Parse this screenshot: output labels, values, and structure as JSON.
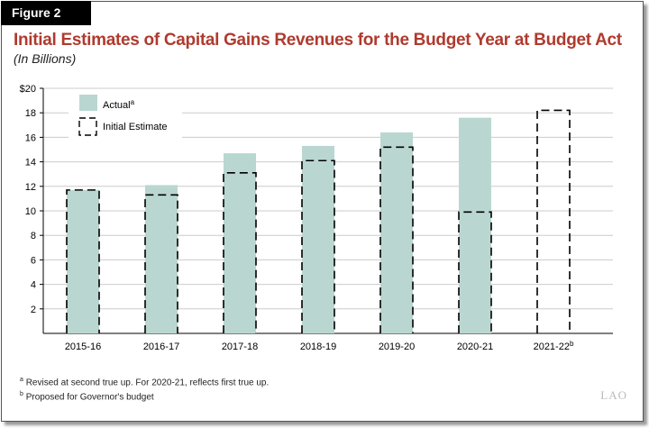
{
  "figure_label": "Figure 2",
  "logo_text": "LAO",
  "footnotes": [
    {
      "mark": "a",
      "text": "Revised at second true up. For 2020-21, reflects first true up."
    },
    {
      "mark": "b",
      "text": "Proposed for Governor's budget"
    }
  ],
  "chart_data": {
    "type": "bar",
    "title": "Initial Estimates of Capital Gains Revenues for the Budget Year at Budget Act",
    "subtitle": "(In Billions)",
    "categories": [
      "2015-16",
      "2016-17",
      "2017-18",
      "2018-19",
      "2019-20",
      "2020-21",
      "2021-22"
    ],
    "category_superscripts": [
      "",
      "",
      "",
      "",
      "",
      "",
      "b"
    ],
    "series": [
      {
        "name": "Actual",
        "superscript": "a",
        "style": "filled",
        "color": "#b9d7d0",
        "values": [
          11.7,
          12.1,
          14.7,
          15.3,
          16.4,
          17.6,
          null
        ]
      },
      {
        "name": "Initial Estimate",
        "style": "dashed-outline",
        "color": "#000000",
        "values": [
          11.7,
          11.3,
          13.1,
          14.1,
          15.2,
          9.9,
          18.2
        ]
      }
    ],
    "ylim": [
      0,
      20
    ],
    "yticks": [
      2,
      4,
      6,
      8,
      10,
      12,
      14,
      16,
      18,
      20
    ],
    "ytick_labels": [
      "2",
      "4",
      "6",
      "8",
      "10",
      "12",
      "14",
      "16",
      "18",
      "$20"
    ],
    "grid": true,
    "legend_placement": "top-left",
    "title_color": "#b03a2e"
  }
}
